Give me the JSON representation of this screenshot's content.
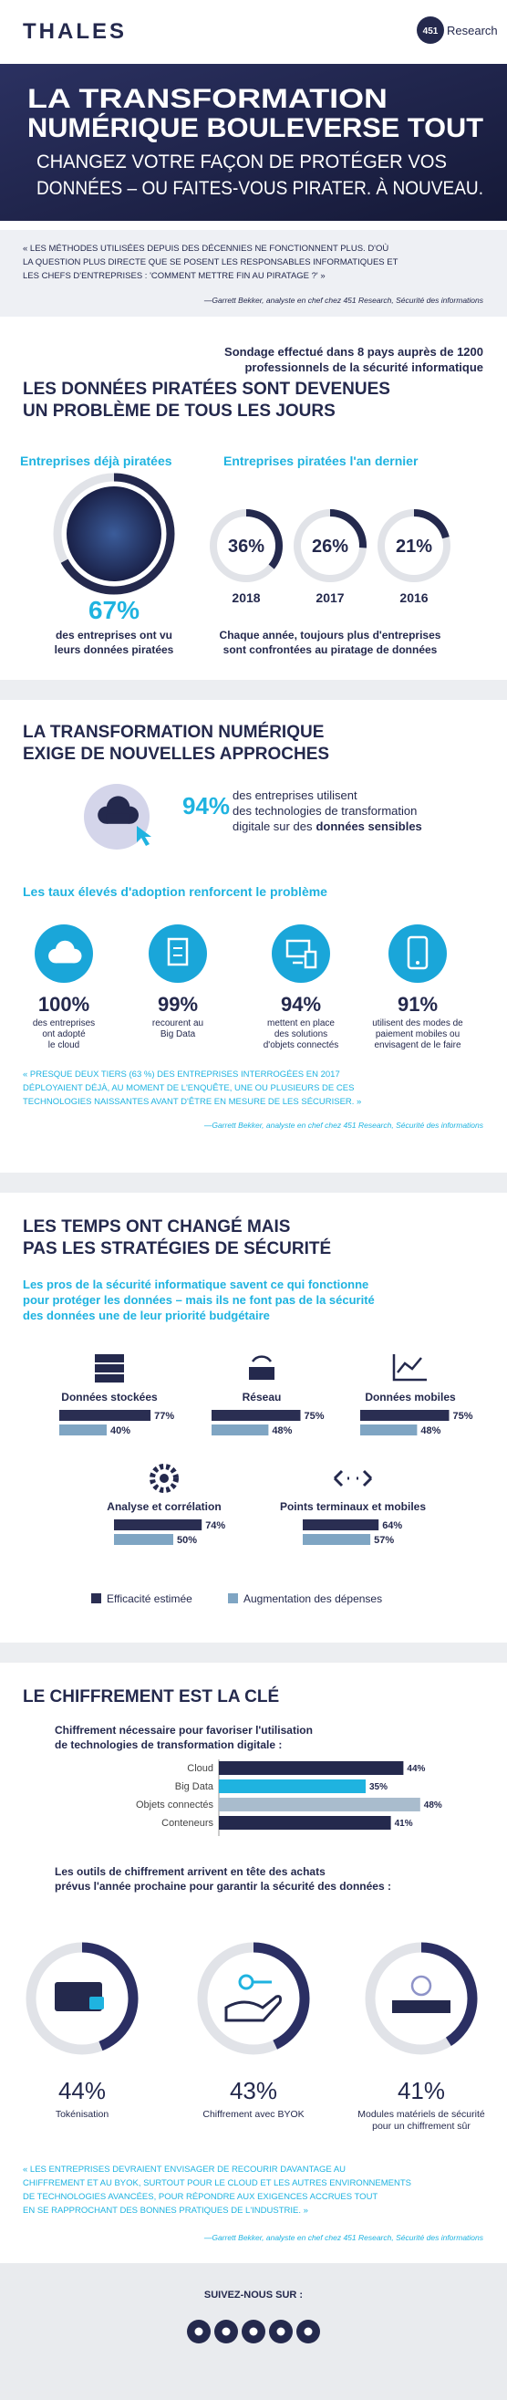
{
  "header": {
    "brand": "THALES",
    "partner_badge": "451",
    "partner_name": "Research",
    "title": [
      "LA TRANSFORMATION",
      "NUMÉRIQUE BOULEVERSE TOUT"
    ],
    "subtitle": [
      "CHANGEZ VOTRE FAÇON DE PROTÉGER VOS",
      "DONNÉES – OU FAITES-VOUS PIRATER. À NOUVEAU."
    ]
  },
  "intro_quote": {
    "lines": [
      "« LES MÉTHODES UTILISÉES DEPUIS DES DÉCENNIES NE FONCTIONNENT PLUS. D'OÙ",
      "LA QUESTION PLUS DIRECTE QUE SE POSENT LES RESPONSABLES INFORMATIQUES ET",
      "LES CHEFS D'ENTREPRISES : 'COMMENT METTRE FIN AU PIRATAGE ?' »"
    ],
    "source": "—Garrett Bekker, analyste en chef chez 451 Research, Sécurité des informations"
  },
  "survey_note": [
    "Sondage effectué dans 8 pays auprès de 1200",
    "professionnels de la sécurité informatique"
  ],
  "breached": {
    "heading": [
      "LES DONNÉES PIRATÉES SONT DEVENUES",
      "UN PROBLÈME DE TOUS LES JOURS"
    ],
    "overall": {
      "label": "Entreprises déjà piratées",
      "value": 67,
      "value_label": "67%",
      "color": "#24294d",
      "caption": [
        "des entreprises ont vu",
        "leurs données piratées"
      ]
    },
    "last_year": {
      "label": "Entreprises piratées l'an dernier",
      "categories": [
        "2018",
        "2017",
        "2016"
      ],
      "values": [
        36,
        26,
        21
      ],
      "value_labels": [
        "36%",
        "26%",
        "21%"
      ],
      "color": "#24294d",
      "caption": [
        "Chaque année, toujours plus d'entreprises",
        "sont confrontées au piratage de données"
      ]
    }
  },
  "transformation": {
    "heading": [
      "LA TRANSFORMATION NUMÉRIQUE",
      "EXIGE DE NOUVELLES APPROCHES"
    ],
    "highlight": {
      "value": 94,
      "value_label": "94%",
      "lines": [
        "des entreprises utilisent",
        "des technologies de transformation"
      ],
      "last_line": "digitale sur des",
      "bold": "données sensibles"
    },
    "adoption_title": "Les taux élevés d'adoption renforcent le problème",
    "adoption": {
      "values": [
        100,
        99,
        94,
        91
      ],
      "value_labels": [
        "100%",
        "99%",
        "94%",
        "91%"
      ],
      "captions": [
        [
          "des entreprises",
          "ont adopté",
          "le cloud"
        ],
        [
          "recourent au",
          "Big Data"
        ],
        [
          "mettent en place",
          "des solutions",
          "d'objets connectés"
        ],
        [
          "utilisent des modes de",
          "paiement mobiles ou",
          "envisagent de le faire"
        ]
      ]
    },
    "quote": {
      "lines": [
        "« PRESQUE DEUX TIERS (63 %) DES ENTREPRISES INTERROGÉES EN 2017",
        "DÉPLOYAIENT DÉJÀ, AU MOMENT DE L'ENQUÊTE, UNE OU PLUSIEURS DE CES",
        "TECHNOLOGIES NAISSANTES AVANT D'ÊTRE EN MESURE DE LES SÉCURISER. »"
      ],
      "source": "—Garrett Bekker, analyste en chef chez 451 Research, Sécurité des informations"
    }
  },
  "strategies": {
    "heading": [
      "LES TEMPS ONT CHANGÉ MAIS",
      "PAS LES STRATÉGIES DE SÉCURITÉ"
    ],
    "intro": [
      "Les pros de la sécurité informatique savent ce qui fonctionne",
      "pour protéger les données – mais ils ne font pas de la sécurité",
      "des données une de leur priorité budgétaire"
    ],
    "categories": [
      "Données stockées",
      "Réseau",
      "Données mobiles",
      "Analyse et corrélation",
      "Points terminaux et mobiles"
    ],
    "series": [
      {
        "name": "Efficacité estimée",
        "color": "#2a2e52",
        "values": [
          77,
          75,
          75,
          74,
          64
        ],
        "value_labels": [
          "77%",
          "75%",
          "75%",
          "74%",
          "64%"
        ]
      },
      {
        "name": "Augmentation des dépenses",
        "color": "#7fa5c3",
        "values": [
          40,
          48,
          48,
          50,
          57
        ],
        "value_labels": [
          "40%",
          "48%",
          "48%",
          "50%",
          "57%"
        ]
      }
    ]
  },
  "encryption": {
    "heading": "LE CHIFFREMENT EST LA CLÉ",
    "need_title": [
      "Chiffrement nécessaire pour favoriser l'utilisation",
      "de technologies de transformation digitale :"
    ],
    "need": {
      "categories": [
        "Cloud",
        "Big Data",
        "Objets connectés",
        "Conteneurs"
      ],
      "values": [
        44,
        35,
        48,
        41
      ],
      "value_labels": [
        "44%",
        "35%",
        "48%",
        "41%"
      ],
      "colors": [
        "#24294d",
        "#1fb3e0",
        "#a9bccd",
        "#24294d"
      ]
    },
    "tools_title": [
      "Les outils de chiffrement arrivent en tête des achats",
      "prévus l'année prochaine pour garantir la sécurité des données :"
    ],
    "tools": {
      "categories": [
        [
          "Tokénisation"
        ],
        [
          "Chiffrement avec BYOK"
        ],
        [
          "Modules matériels de sécurité",
          "pour un chiffrement sûr"
        ]
      ],
      "values": [
        44,
        43,
        41
      ],
      "value_labels": [
        "44%",
        "43%",
        "41%"
      ],
      "color": "#2b2f63"
    },
    "quote": {
      "lines": [
        "« LES ENTREPRISES DEVRAIENT ENVISAGER DE RECOURIR DAVANTAGE AU",
        "CHIFFREMENT ET AU BYOK, SURTOUT POUR LE CLOUD ET LES AUTRES ENVIRONNEMENTS",
        "DE TECHNOLOGIES AVANCÉES, POUR RÉPONDRE AUX EXIGENCES ACCRUES TOUT",
        "EN SE RAPPROCHANT DES BONNES PRATIQUES DE L'INDUSTRIE. »"
      ],
      "source": "—Garrett Bekker, analyste en chef chez 451 Research, Sécurité des informations"
    }
  },
  "footer": {
    "follow": "SUIVEZ-NOUS SUR :"
  }
}
